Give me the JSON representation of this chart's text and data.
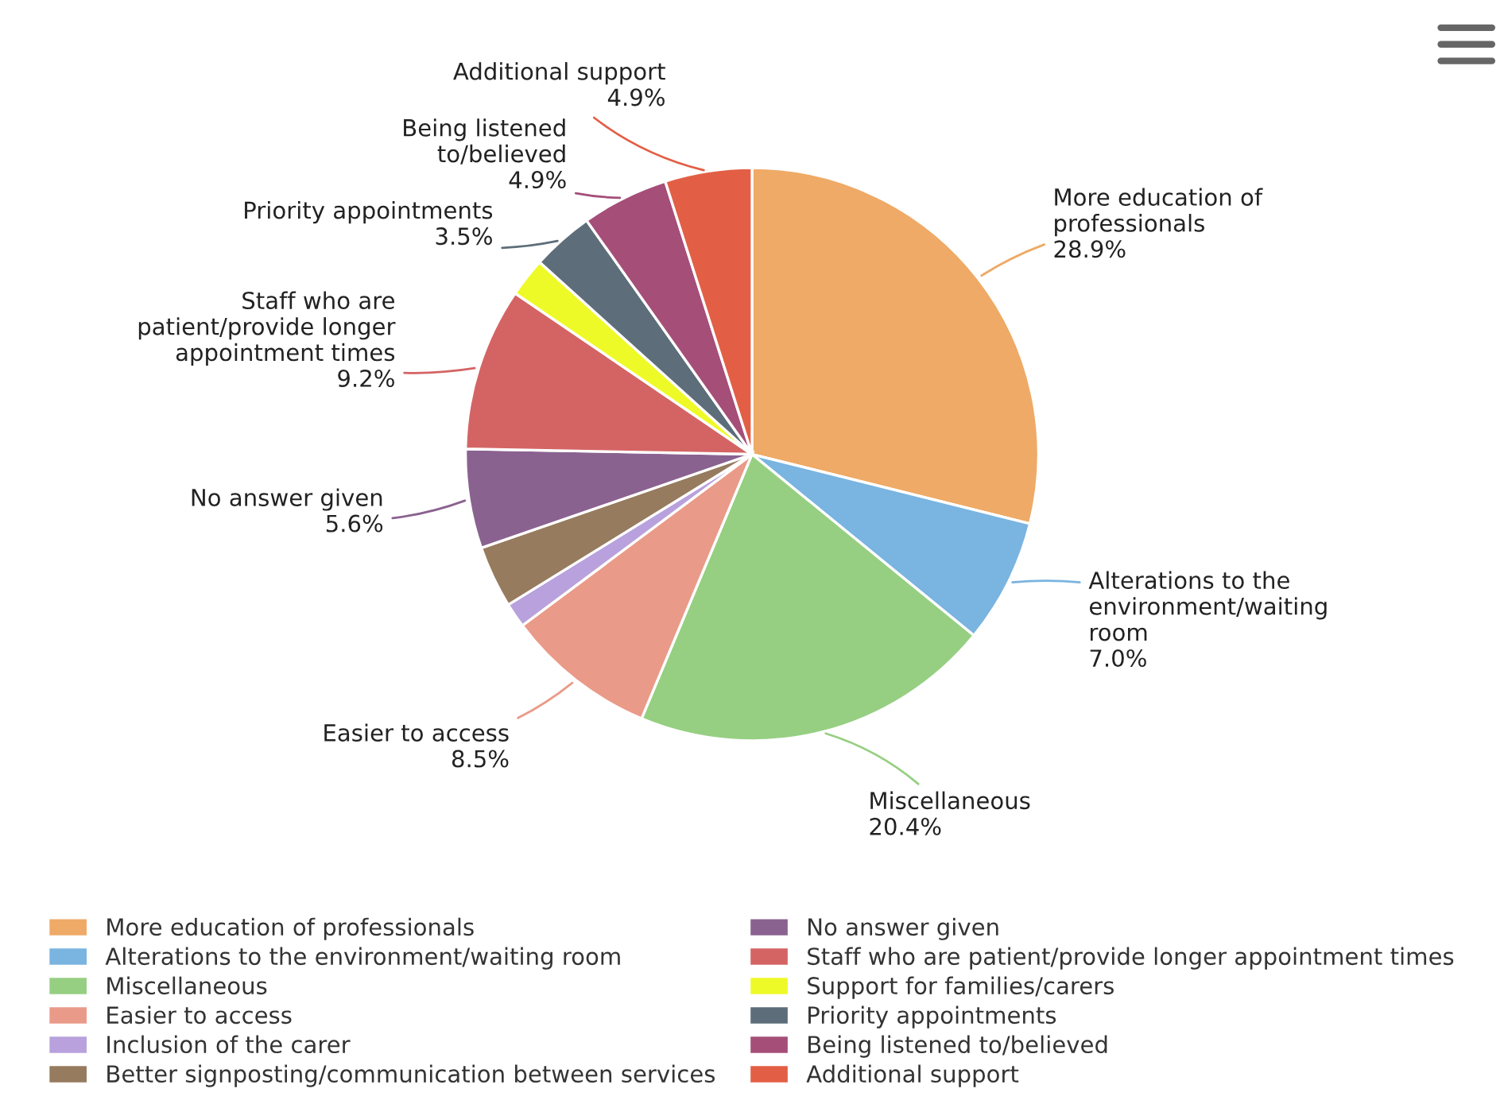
{
  "chart_data": {
    "type": "pie",
    "categories": [
      "More education of professionals",
      "Alterations to the environment/waiting room",
      "Miscellaneous",
      "Easier to access",
      "Inclusion of the carer",
      "Better signposting/communication between services",
      "No answer given",
      "Staff who are patient/provide longer appointment times",
      "Support for families/carers",
      "Priority appointments",
      "Being listened to/believed",
      "Additional support"
    ],
    "values": [
      28.9,
      7.0,
      20.4,
      8.5,
      1.4,
      3.5,
      5.6,
      9.2,
      2.2,
      3.5,
      4.9,
      4.9
    ],
    "value_labels": [
      "28.9%",
      "7.0%",
      "20.4%",
      "8.5%",
      null,
      null,
      "5.6%",
      "9.2%",
      null,
      "3.5%",
      "4.9%",
      "4.9%"
    ],
    "colors": [
      "#eeaa66",
      "#7ab4e0",
      "#96cf82",
      "#ea9a88",
      "#b8a1dc",
      "#967b5e",
      "#8a6290",
      "#d46464",
      "#eefa28",
      "#5d6e7a",
      "#a54e78",
      "#e25f45"
    ],
    "legend": "bottom"
  }
}
